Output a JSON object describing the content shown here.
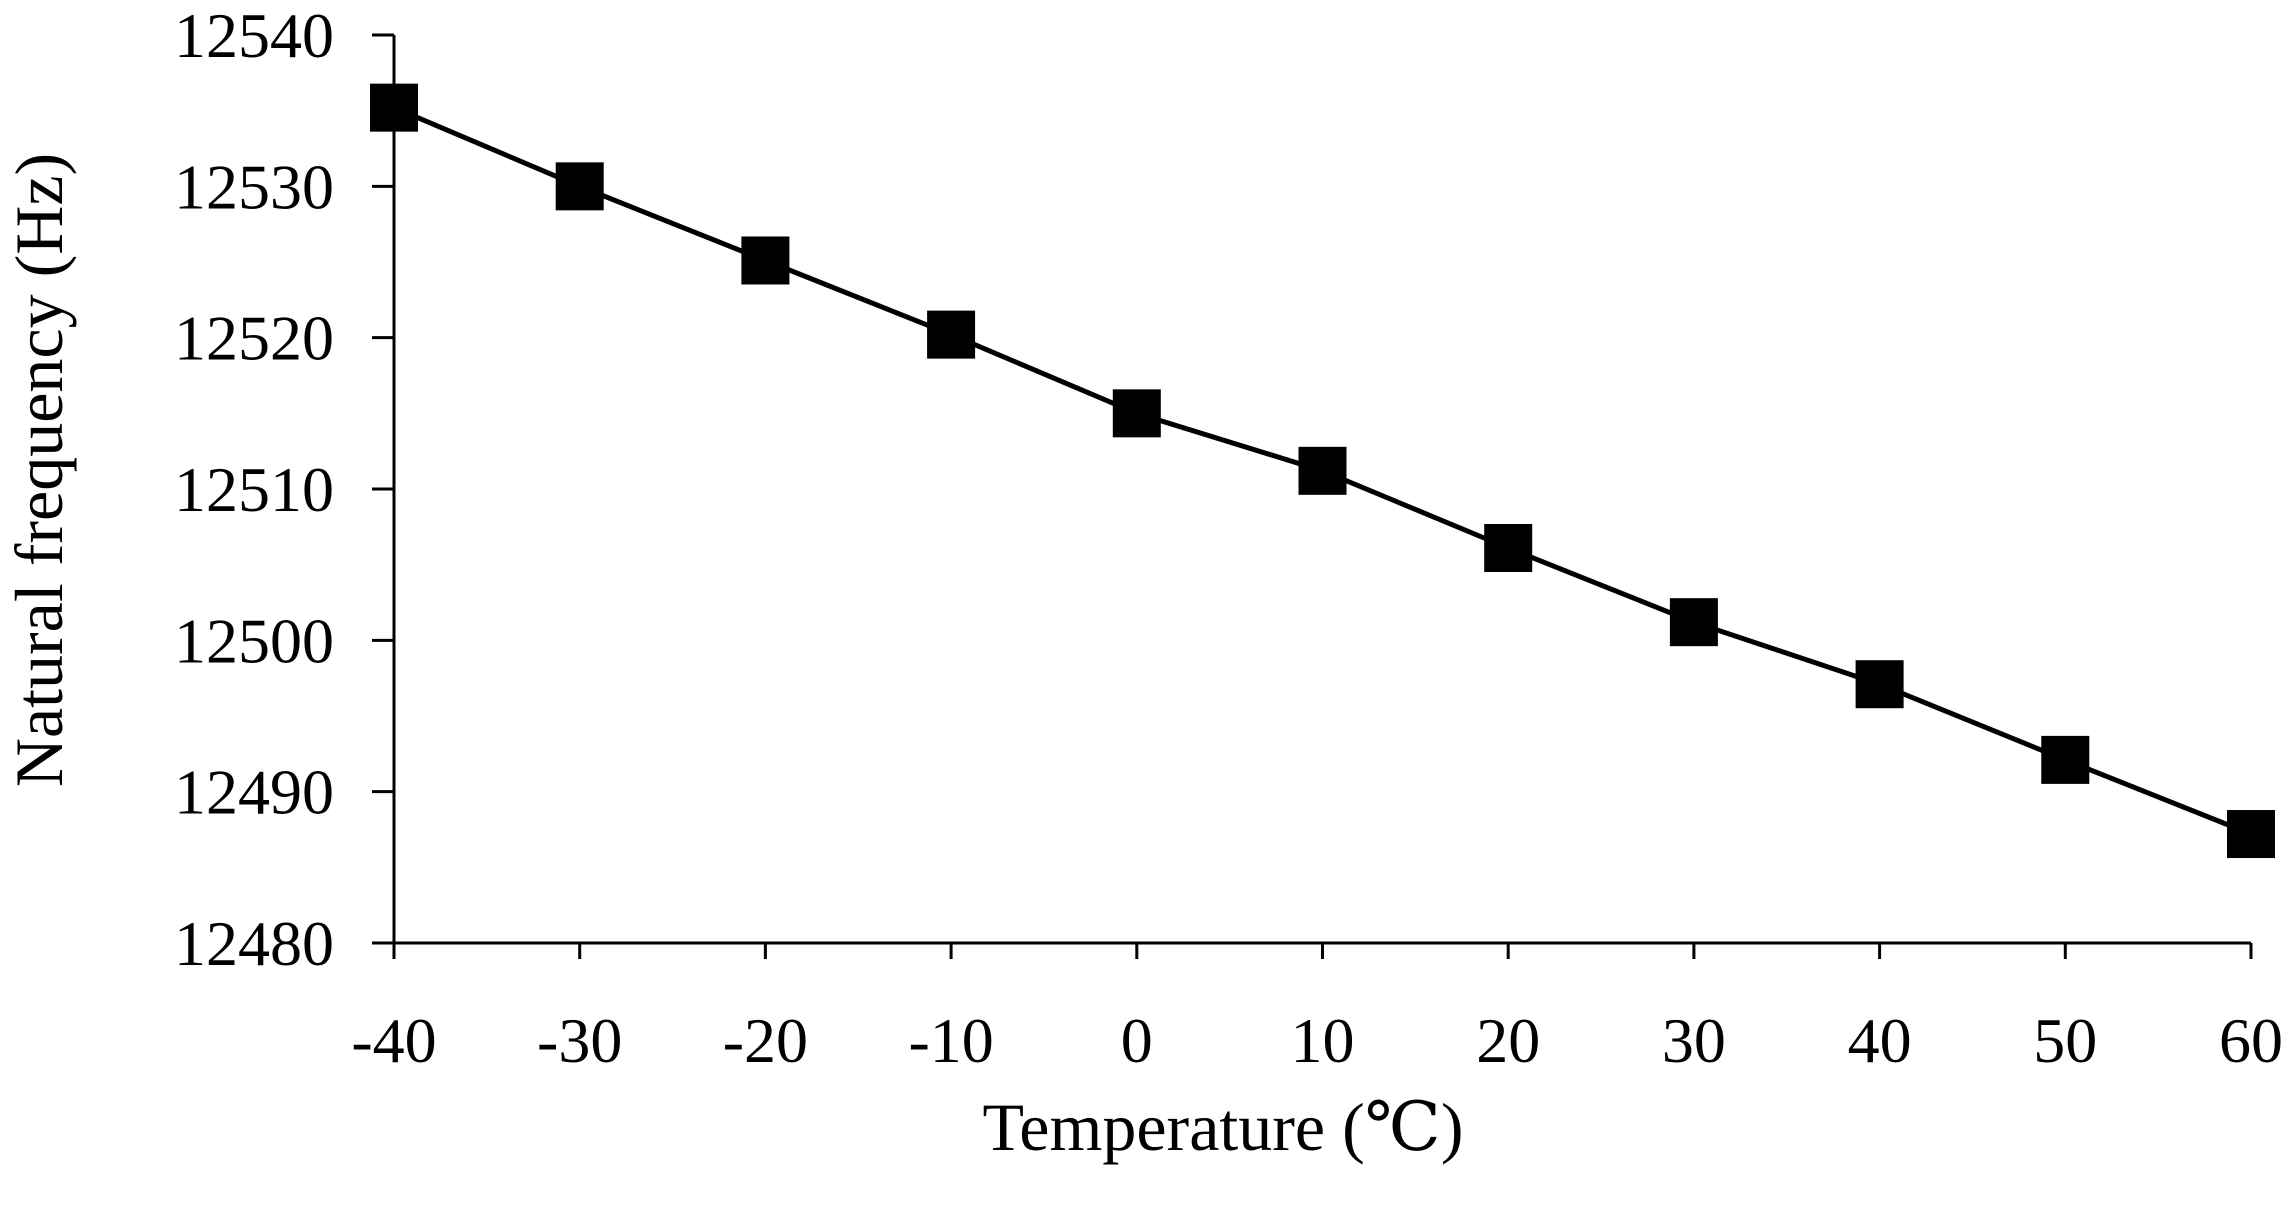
{
  "colors": {
    "line": "#000000",
    "marker": "#000000",
    "axis": "#000000",
    "background": "#ffffff"
  },
  "chart_data": {
    "type": "line",
    "title": "",
    "xlabel": "Temperature (℃)",
    "ylabel": "Natural frequency (Hz)",
    "x": [
      -40,
      -30,
      -20,
      -10,
      0,
      10,
      20,
      30,
      40,
      50,
      60
    ],
    "series": [
      {
        "name": "Natural frequency",
        "marker": "square",
        "values": [
          12535.2,
          12530.0,
          12525.1,
          12520.2,
          12515.0,
          12511.2,
          12506.1,
          12501.2,
          12497.1,
          12492.1,
          12487.2
        ]
      }
    ],
    "xlim": [
      -40,
      60
    ],
    "ylim": [
      12480,
      12540
    ],
    "x_ticks": [
      -40,
      -30,
      -20,
      -10,
      0,
      10,
      20,
      30,
      40,
      50,
      60
    ],
    "x_tick_labels": [
      "-40",
      "-30",
      "-20",
      "-10",
      "0",
      "10",
      "20",
      "30",
      "40",
      "50",
      "60"
    ],
    "y_ticks": [
      12480,
      12490,
      12500,
      12510,
      12520,
      12530,
      12540
    ],
    "y_tick_labels": [
      "12480",
      "12490",
      "12500",
      "12510",
      "12520",
      "12530",
      "12540"
    ],
    "grid": false,
    "legend": "none"
  }
}
